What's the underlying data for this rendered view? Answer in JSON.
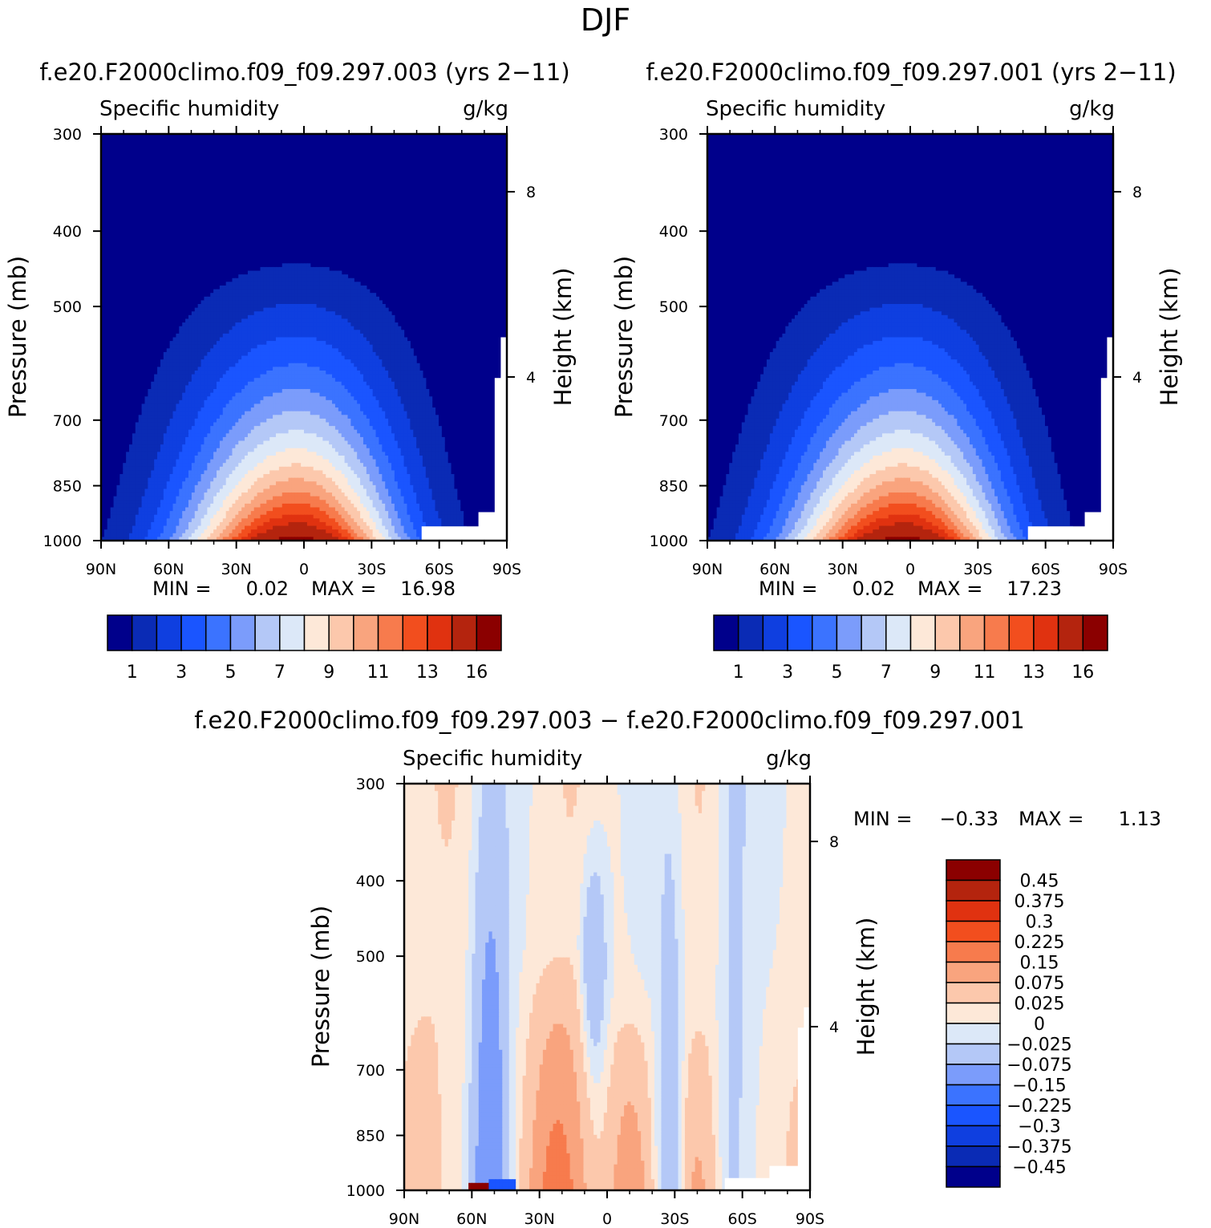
{
  "figure": {
    "title": "DJF",
    "diff_title": "f.e20.F2000climo.f09_f09.297.003 − f.e20.F2000climo.f09_f09.297.001"
  },
  "colors": {
    "abs_palette": [
      "#00008b",
      "#0a2bb5",
      "#0f3fe0",
      "#1a55ff",
      "#3b73ff",
      "#7b9cfb",
      "#b4c8f7",
      "#dce8f8",
      "#fde8d8",
      "#fcc8ac",
      "#f9a47e",
      "#f77b4d",
      "#f24e1e",
      "#e03210",
      "#b4240e",
      "#8b0000"
    ],
    "diff_palette": [
      "#00008b",
      "#0a2bb5",
      "#0f3fe0",
      "#1a55ff",
      "#3b73ff",
      "#7b9cfb",
      "#b4c8f7",
      "#dce8f8",
      "#fde8d8",
      "#fcc8ac",
      "#f9a47e",
      "#f77b4d",
      "#f24e1e",
      "#e03210",
      "#b4240e",
      "#8b0000"
    ]
  },
  "chart_data": [
    {
      "type": "contour",
      "panel": "top-left",
      "case_title": "f.e20.F2000climo.f09_f09.297.003 (yrs 2−11)",
      "variable": "Specific humidity",
      "units": "g/kg",
      "ylabel": "Pressure (mb)",
      "ylabel_right": "Height (km)",
      "x_ticks": [
        "90N",
        "60N",
        "30N",
        "0",
        "30S",
        "60S",
        "90S"
      ],
      "x_range": [
        90,
        -90
      ],
      "y_ticks": [
        "300",
        "400",
        "500",
        "700",
        "850",
        "1000"
      ],
      "y_range_mb": [
        300,
        1000
      ],
      "right_ticks": [
        "8",
        "4"
      ],
      "stats": {
        "min_label": "MIN =",
        "min": "0.02",
        "max_label": "MAX =",
        "max": "16.98"
      },
      "contour_levels": [
        0.5,
        1,
        2,
        3,
        4,
        5,
        6,
        7,
        8,
        9,
        10,
        11,
        12,
        13,
        14,
        16
      ],
      "colorbar_labels": [
        "1",
        "3",
        "5",
        "7",
        "9",
        "11",
        "13",
        "16"
      ]
    },
    {
      "type": "contour",
      "panel": "top-right",
      "case_title": "f.e20.F2000climo.f09_f09.297.001 (yrs 2−11)",
      "variable": "Specific humidity",
      "units": "g/kg",
      "ylabel": "Pressure (mb)",
      "ylabel_right": "Height (km)",
      "x_ticks": [
        "90N",
        "60N",
        "30N",
        "0",
        "30S",
        "60S",
        "90S"
      ],
      "x_range": [
        90,
        -90
      ],
      "y_ticks": [
        "300",
        "400",
        "500",
        "700",
        "850",
        "1000"
      ],
      "y_range_mb": [
        300,
        1000
      ],
      "right_ticks": [
        "8",
        "4"
      ],
      "stats": {
        "min_label": "MIN =",
        "min": "0.02",
        "max_label": "MAX =",
        "max": "17.23"
      },
      "contour_levels": [
        0.5,
        1,
        2,
        3,
        4,
        5,
        6,
        7,
        8,
        9,
        10,
        11,
        12,
        13,
        14,
        16
      ],
      "colorbar_labels": [
        "1",
        "3",
        "5",
        "7",
        "9",
        "11",
        "13",
        "16"
      ]
    },
    {
      "type": "contour",
      "panel": "bottom-difference",
      "variable": "Specific humidity",
      "units": "g/kg",
      "ylabel": "Pressure (mb)",
      "ylabel_right": "Height (km)",
      "x_ticks": [
        "90N",
        "60N",
        "30N",
        "0",
        "30S",
        "60S",
        "90S"
      ],
      "x_range": [
        90,
        -90
      ],
      "y_ticks": [
        "300",
        "400",
        "500",
        "700",
        "850",
        "1000"
      ],
      "y_range_mb": [
        300,
        1000
      ],
      "right_ticks": [
        "8",
        "4"
      ],
      "stats": {
        "min_label": "MIN =",
        "min": "−0.33",
        "max_label": "MAX =",
        "max": "1.13"
      },
      "colorbar_labels": [
        "0.45",
        "0.375",
        "0.3",
        "0.225",
        "0.15",
        "0.075",
        "0.025",
        "0",
        "−0.025",
        "−0.075",
        "−0.15",
        "−0.225",
        "−0.3",
        "−0.375",
        "−0.45"
      ]
    }
  ]
}
